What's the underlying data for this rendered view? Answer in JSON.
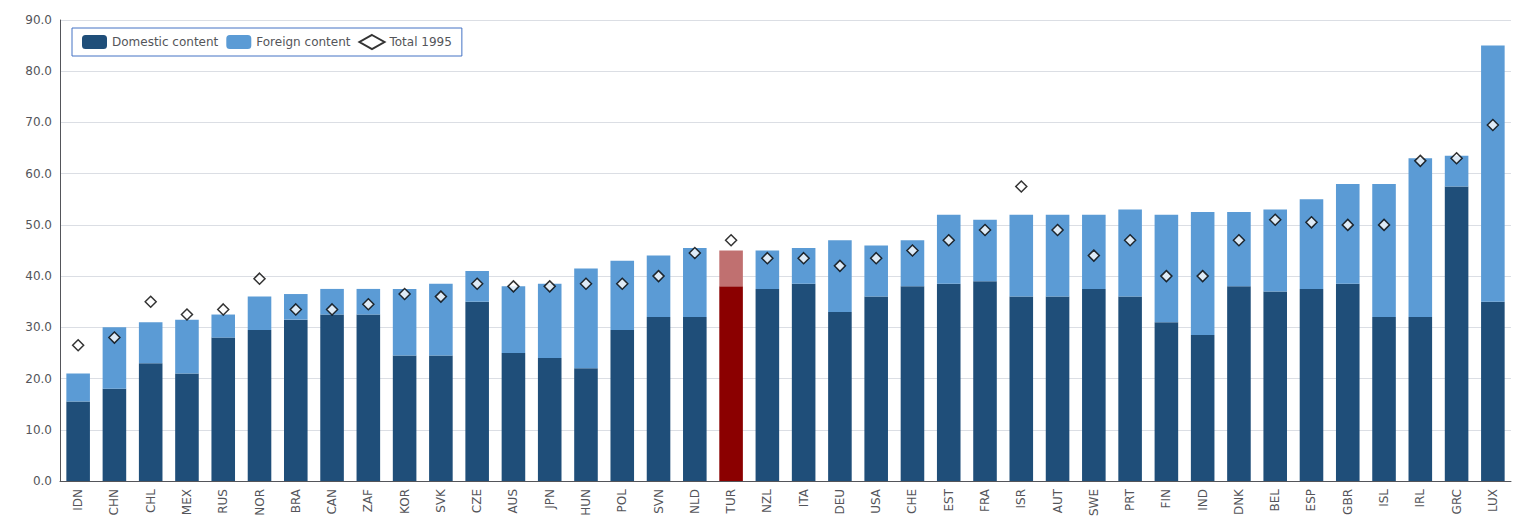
{
  "chart_data": {
    "type": "bar",
    "categories": [
      "IDN",
      "CHN",
      "CHL",
      "MEX",
      "RUS",
      "NOR",
      "BRA",
      "CAN",
      "ZAF",
      "KOR",
      "SVK",
      "CZE",
      "AUS",
      "JPN",
      "HUN",
      "POL",
      "SVN",
      "NLD",
      "TUR",
      "NZL",
      "ITA",
      "DEU",
      "USA",
      "CHE",
      "EST",
      "FRA",
      "ISR",
      "AUT",
      "SWE",
      "PRT",
      "FIN",
      "IND",
      "DNK",
      "BEL",
      "ESP",
      "GBR",
      "ISL",
      "IRL",
      "GRC",
      "LUX"
    ],
    "series": [
      {
        "name": "Domestic content",
        "type": "bar",
        "color": "#1F4E79",
        "colors": [
          "#1F4E79",
          "#1F4E79",
          "#1F4E79",
          "#1F4E79",
          "#1F4E79",
          "#1F4E79",
          "#1F4E79",
          "#1F4E79",
          "#1F4E79",
          "#1F4E79",
          "#1F4E79",
          "#1F4E79",
          "#1F4E79",
          "#1F4E79",
          "#1F4E79",
          "#1F4E79",
          "#1F4E79",
          "#1F4E79",
          "#8B0000",
          "#1F4E79",
          "#1F4E79",
          "#1F4E79",
          "#1F4E79",
          "#1F4E79",
          "#1F4E79",
          "#1F4E79",
          "#1F4E79",
          "#1F4E79",
          "#1F4E79",
          "#1F4E79",
          "#1F4E79",
          "#1F4E79",
          "#1F4E79",
          "#1F4E79",
          "#1F4E79",
          "#1F4E79",
          "#1F4E79",
          "#1F4E79",
          "#1F4E79",
          "#1F4E79"
        ],
        "values": [
          15.5,
          18.0,
          23.0,
          21.0,
          28.0,
          29.5,
          31.5,
          32.5,
          32.5,
          24.5,
          24.5,
          35.0,
          25.0,
          24.0,
          22.0,
          29.5,
          32.0,
          32.0,
          38.0,
          37.5,
          38.5,
          33.0,
          36.0,
          38.0,
          38.5,
          39.0,
          36.0,
          36.0,
          37.5,
          36.0,
          31.0,
          28.5,
          38.0,
          37.0,
          37.5,
          38.5,
          32.0,
          32.0,
          57.5,
          35.0
        ]
      },
      {
        "name": "Foreign content",
        "type": "bar",
        "color": "#5B9BD5",
        "colors": [
          "#5B9BD5",
          "#5B9BD5",
          "#5B9BD5",
          "#5B9BD5",
          "#5B9BD5",
          "#5B9BD5",
          "#5B9BD5",
          "#5B9BD5",
          "#5B9BD5",
          "#5B9BD5",
          "#5B9BD5",
          "#5B9BD5",
          "#5B9BD5",
          "#5B9BD5",
          "#5B9BD5",
          "#5B9BD5",
          "#5B9BD5",
          "#5B9BD5",
          "#C07070",
          "#5B9BD5",
          "#5B9BD5",
          "#5B9BD5",
          "#5B9BD5",
          "#5B9BD5",
          "#5B9BD5",
          "#5B9BD5",
          "#5B9BD5",
          "#5B9BD5",
          "#5B9BD5",
          "#5B9BD5",
          "#5B9BD5",
          "#5B9BD5",
          "#5B9BD5",
          "#5B9BD5",
          "#5B9BD5",
          "#5B9BD5",
          "#5B9BD5",
          "#5B9BD5",
          "#5B9BD5",
          "#5B9BD5"
        ],
        "values": [
          5.5,
          12.0,
          8.0,
          10.5,
          4.5,
          6.5,
          5.0,
          5.0,
          5.0,
          13.0,
          14.0,
          6.0,
          13.0,
          14.5,
          19.5,
          13.5,
          12.0,
          13.5,
          7.0,
          7.5,
          7.0,
          14.0,
          10.0,
          9.0,
          13.5,
          12.0,
          16.0,
          16.0,
          14.5,
          17.0,
          21.0,
          24.0,
          14.5,
          16.0,
          17.5,
          19.5,
          26.0,
          31.0,
          6.0,
          50.0
        ]
      },
      {
        "name": "Total 1995",
        "type": "scatter",
        "marker": "diamond",
        "color": "white",
        "values": [
          26.5,
          28.0,
          35.0,
          32.5,
          33.5,
          39.5,
          33.5,
          33.5,
          34.5,
          36.5,
          36.0,
          38.5,
          38.0,
          38.0,
          38.5,
          38.5,
          40.0,
          44.5,
          47.0,
          43.5,
          43.5,
          42.0,
          43.5,
          45.0,
          47.0,
          49.0,
          57.5,
          49.0,
          44.0,
          47.0,
          40.0,
          40.0,
          47.0,
          51.0,
          50.5,
          50.0,
          50.0,
          62.5,
          63.0,
          69.5
        ]
      }
    ],
    "stacked": true,
    "ylim": [
      0,
      90
    ],
    "yticks": [
      {
        "value": 0,
        "label": "0.0"
      },
      {
        "value": 10,
        "label": "10.0"
      },
      {
        "value": 20,
        "label": "20.0"
      },
      {
        "value": 30,
        "label": "30.0"
      },
      {
        "value": 40,
        "label": "40.0"
      },
      {
        "value": 50,
        "label": "50.0"
      },
      {
        "value": 60,
        "label": "60.0"
      },
      {
        "value": 70,
        "label": "70.0"
      },
      {
        "value": 80,
        "label": "80.0"
      },
      {
        "value": 90,
        "label": "90.0"
      }
    ],
    "grid": true,
    "legend": "upper left"
  }
}
